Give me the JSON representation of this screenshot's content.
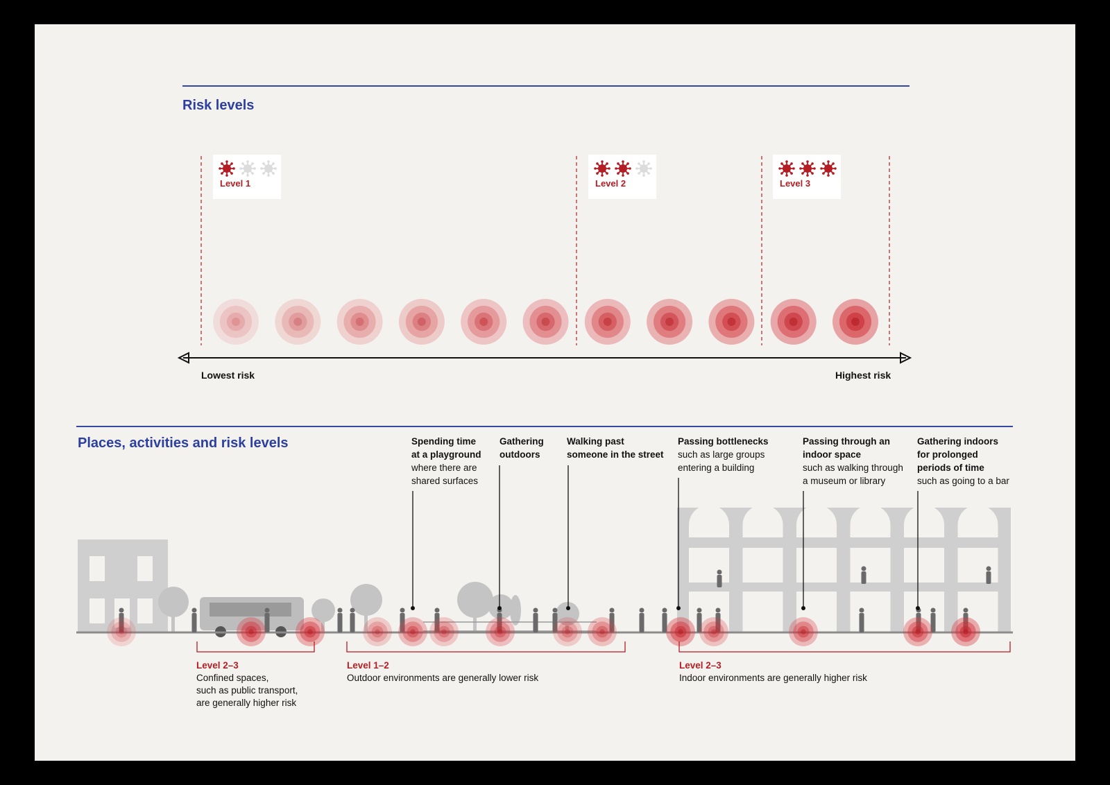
{
  "risk_levels": {
    "title": "Risk levels",
    "levels": [
      {
        "label": "Level 1",
        "active_icons": 1,
        "total_icons": 3
      },
      {
        "label": "Level 2",
        "active_icons": 2,
        "total_icons": 3
      },
      {
        "label": "Level 3",
        "active_icons": 3,
        "total_icons": 3
      }
    ],
    "axis": {
      "low_label": "Lowest risk",
      "high_label": "Highest risk"
    },
    "scale_steps": 11
  },
  "places": {
    "title": "Places, activities and risk levels",
    "annotations": [
      {
        "bold": [
          "Spending time",
          "at a playground"
        ],
        "normal": [
          "where there are",
          "shared surfaces"
        ]
      },
      {
        "bold": [
          "Gathering",
          "outdoors"
        ],
        "normal": []
      },
      {
        "bold": [
          "Walking past",
          "someone in the street"
        ],
        "normal": []
      },
      {
        "bold": [
          "Passing bottlenecks"
        ],
        "normal": [
          "such as large groups",
          "entering a building"
        ]
      },
      {
        "bold": [
          "Passing through an",
          "indoor space"
        ],
        "normal": [
          "such as walking through",
          "a museum or library"
        ]
      },
      {
        "bold": [
          "Gathering indoors",
          "for prolonged",
          "periods of time"
        ],
        "normal": [
          "such as going to a bar"
        ]
      }
    ],
    "ranges": [
      {
        "level": "Level 2–3",
        "lines": [
          "Confined spaces,",
          "such as public transport,",
          "are generally higher risk"
        ]
      },
      {
        "level": "Level 1–2",
        "lines": [
          "Outdoor environments are generally lower risk"
        ]
      },
      {
        "level": "Level 2–3",
        "lines": [
          "Indoor environments are generally higher risk"
        ]
      }
    ]
  },
  "colors": {
    "accent_blue": "#2c3f9e",
    "risk_red": "#b51d24",
    "inactive_icon": "#dcdcdc",
    "building_gray": "#cfcfcf",
    "background": "#f4f2ee"
  }
}
